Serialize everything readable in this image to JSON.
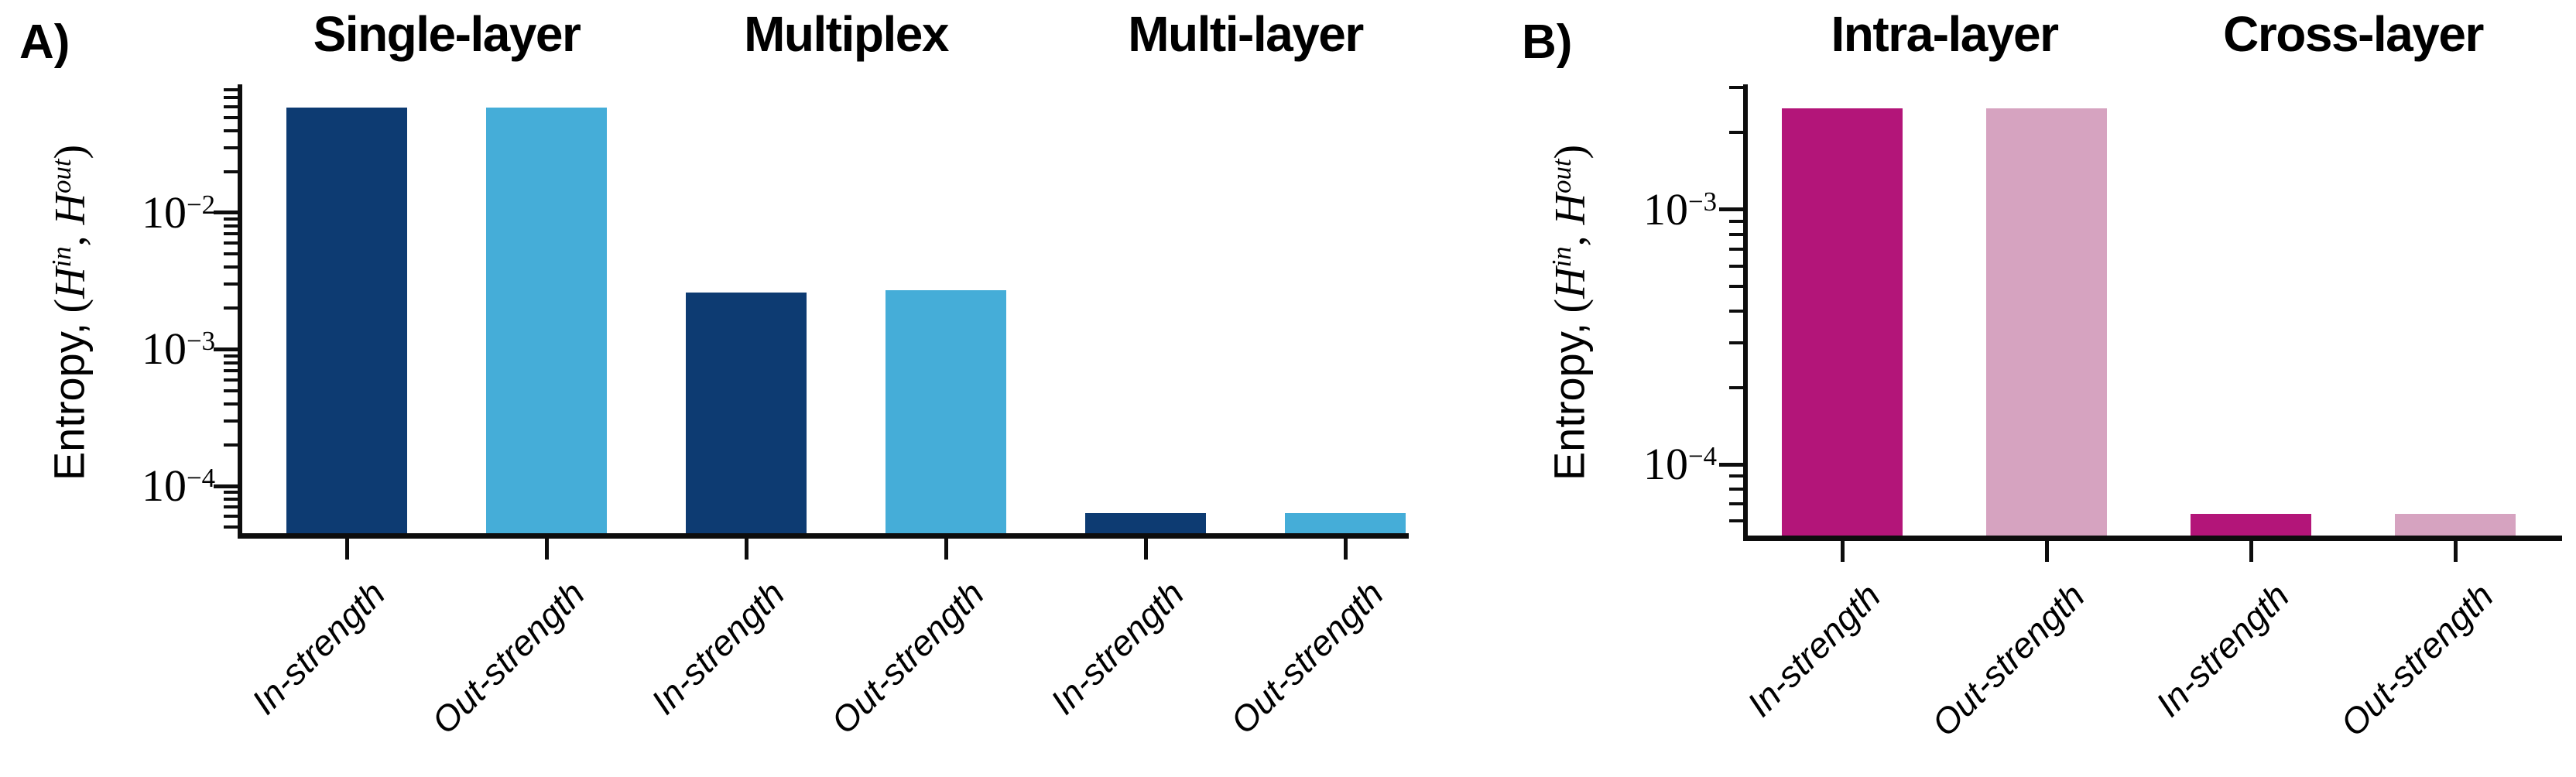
{
  "figure": {
    "background": "#ffffff",
    "panels": [
      {
        "label": "A)"
      },
      {
        "label": "B)"
      }
    ],
    "ylabel": {
      "prefix": "Entropy,",
      "open": "(",
      "h_in": "H",
      "sup_in": "in",
      "separator": ", ",
      "h_out": "H",
      "sup_out": "out",
      "close": ")"
    }
  },
  "chart_data": [
    {
      "type": "bar",
      "panel": "A",
      "yscale": "log",
      "ylabel": "Entropy, (H^in, H^out)",
      "xlabel": "",
      "grid": false,
      "legend": "none",
      "ylim": [
        4.34e-05,
        0.0838
      ],
      "yticks": [
        {
          "value": 0.01,
          "base": "10",
          "exp": "−2"
        },
        {
          "value": 0.001,
          "base": "10",
          "exp": "−3"
        },
        {
          "value": 0.0001,
          "base": "10",
          "exp": "−4"
        }
      ],
      "series_colors": {
        "in": "#0d3b72",
        "out": "#45add8"
      },
      "groups": [
        {
          "title": "Single-layer",
          "bars": [
            {
              "label": "In-strength",
              "series": "in",
              "value": 0.059
            },
            {
              "label": "Out-strength",
              "series": "out",
              "value": 0.059
            }
          ]
        },
        {
          "title": "Multiplex",
          "bars": [
            {
              "label": "In-strength",
              "series": "in",
              "value": 0.0026
            },
            {
              "label": "Out-strength",
              "series": "out",
              "value": 0.0027
            }
          ]
        },
        {
          "title": "Multi-layer",
          "bars": [
            {
              "label": "In-strength",
              "series": "in",
              "value": 6.3e-05
            },
            {
              "label": "Out-strength",
              "series": "out",
              "value": 6.3e-05
            }
          ]
        }
      ]
    },
    {
      "type": "bar",
      "panel": "B",
      "yscale": "log",
      "ylabel": "Entropy, (H^in, H^out)",
      "xlabel": "",
      "grid": false,
      "legend": "none",
      "ylim": [
        5.15e-05,
        0.00303
      ],
      "yticks": [
        {
          "value": 0.001,
          "base": "10",
          "exp": "−3"
        },
        {
          "value": 0.0001,
          "base": "10",
          "exp": "−4"
        }
      ],
      "series_colors": {
        "in": "#b31579",
        "out": "#d6a3c0"
      },
      "groups": [
        {
          "title": "Intra-layer",
          "bars": [
            {
              "label": "In-strength",
              "series": "in",
              "value": 0.0025
            },
            {
              "label": "Out-strength",
              "series": "out",
              "value": 0.0025
            }
          ]
        },
        {
          "title": "Cross-layer",
          "bars": [
            {
              "label": "In-strength",
              "series": "in",
              "value": 6.4e-05
            },
            {
              "label": "Out-strength",
              "series": "out",
              "value": 6.4e-05
            }
          ]
        }
      ]
    }
  ]
}
